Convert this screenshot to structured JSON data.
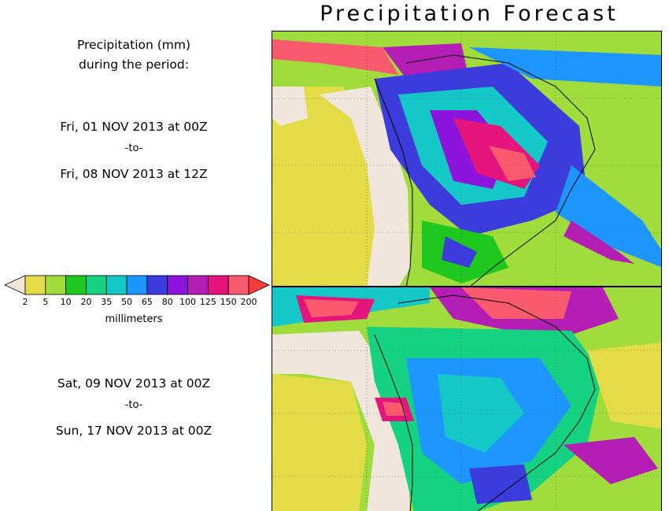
{
  "title": "Precipitation Forecast",
  "legend": {
    "heading_line1": "Precipitation (mm)",
    "heading_line2": "during the period:",
    "units": "millimeters",
    "levels": [
      "2",
      "5",
      "10",
      "20",
      "35",
      "50",
      "65",
      "80",
      "100",
      "125",
      "150",
      "200"
    ],
    "colors": [
      "#f0e6dc",
      "#e4dc46",
      "#a0dc3c",
      "#1ec81e",
      "#14d282",
      "#14c8c8",
      "#1e96ff",
      "#3c3cdc",
      "#8c14dc",
      "#b41eb4",
      "#e6147d",
      "#fa5a6e",
      "#fa3c3c"
    ]
  },
  "periods": [
    {
      "start": "Fri, 01 NOV 2013 at 00Z",
      "sep": "-to-",
      "end": "Fri, 08 NOV 2013 at 12Z"
    },
    {
      "start": "Sat, 09 NOV 2013 at 00Z",
      "sep": "-to-",
      "end": "Sun, 17 NOV 2013 at 00Z"
    }
  ]
}
